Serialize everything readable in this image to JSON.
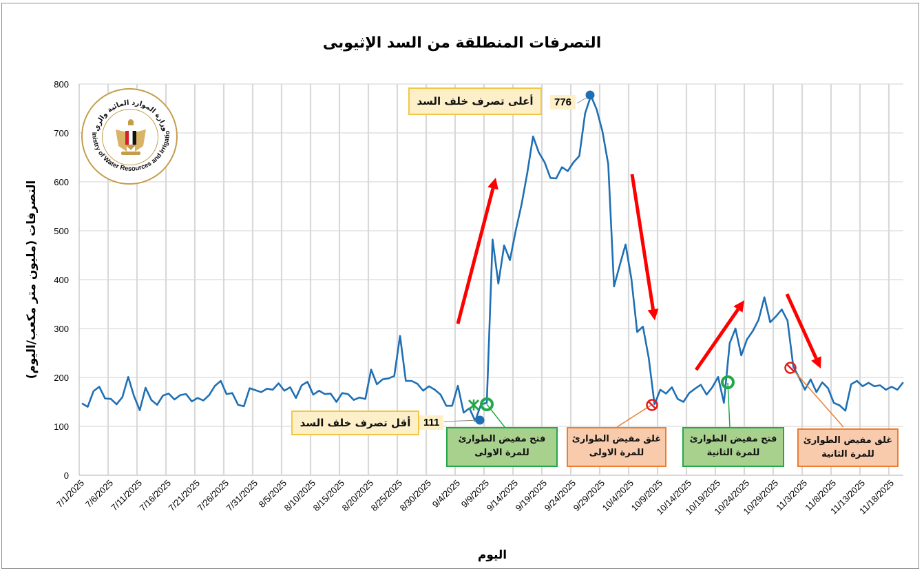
{
  "chart_data": {
    "type": "line",
    "title": "التصرفات المنطلقة من السد الإثيوبى",
    "xlabel": "اليوم",
    "ylabel": "التصرفات (مليون متر مكعب/اليوم)",
    "ylim": [
      0,
      800
    ],
    "yticks": [
      0,
      100,
      200,
      300,
      400,
      500,
      600,
      700,
      800
    ],
    "grid": true,
    "legend": null,
    "x_start": "7/1/2025",
    "x_end": "11/20/2025",
    "xtick_labels": [
      "7/1/2025",
      "7/6/2025",
      "7/11/2025",
      "7/16/2025",
      "7/21/2025",
      "7/26/2025",
      "7/31/2025",
      "8/5/2025",
      "8/10/2025",
      "8/15/2025",
      "8/20/2025",
      "8/25/2025",
      "8/30/2025",
      "9/4/2025",
      "9/9/2025",
      "9/14/2025",
      "9/19/2025",
      "9/24/2025",
      "9/29/2025",
      "10/4/2025",
      "10/9/2025",
      "10/14/2025",
      "10/19/2025",
      "10/24/2025",
      "10/29/2025",
      "11/3/2025",
      "11/8/2025",
      "11/13/2025",
      "11/18/2025"
    ],
    "series": [
      {
        "name": "التصرفات",
        "color": "#1f6fb4",
        "values": [
          147,
          140,
          172,
          181,
          157,
          156,
          145,
          160,
          201,
          162,
          133,
          179,
          154,
          144,
          163,
          167,
          155,
          164,
          166,
          151,
          158,
          153,
          164,
          183,
          193,
          166,
          168,
          144,
          141,
          178,
          174,
          170,
          177,
          175,
          188,
          173,
          180,
          158,
          184,
          191,
          165,
          173,
          166,
          167,
          150,
          168,
          166,
          154,
          159,
          156,
          216,
          186,
          196,
          198,
          203,
          285,
          193,
          193,
          187,
          173,
          182,
          175,
          165,
          142,
          142,
          183,
          128,
          137,
          111,
          145,
          148,
          482,
          392,
          470,
          440,
          500,
          553,
          618,
          693,
          660,
          640,
          608,
          607,
          630,
          622,
          640,
          653,
          740,
          776,
          748,
          703,
          636,
          386,
          430,
          472,
          402,
          293,
          304,
          240,
          145,
          175,
          167,
          180,
          156,
          150,
          168,
          177,
          185,
          165,
          180,
          201,
          148,
          270,
          300,
          245,
          278,
          295,
          318,
          364,
          313,
          325,
          339,
          316,
          222,
          200,
          175,
          196,
          170,
          190,
          178,
          148,
          143,
          132,
          186,
          193,
          182,
          189,
          182,
          184,
          175,
          181,
          175,
          190
        ]
      }
    ],
    "annotations": [
      {
        "type": "max",
        "date": "9/27/2025",
        "value": 776,
        "label": "أعلى تصرف خلف السد"
      },
      {
        "type": "min",
        "date": "9/7/2025",
        "value": 111,
        "label": "أقل تصرف خلف السد"
      },
      {
        "type": "event",
        "date": "9/9/2025",
        "label_line1": "فتح مفيض الطوارئ",
        "label_line2": "للمرة الاولى",
        "color": "green"
      },
      {
        "type": "event",
        "date": "10/9/2025",
        "label_line1": "غلق مفيض الطوارئ",
        "label_line2": "للمرة الاولى",
        "color": "orange"
      },
      {
        "type": "event",
        "date": "10/21/2025",
        "label_line1": "فتح مفيض الطوارئ",
        "label_line2": "للمرة الثانية",
        "color": "green"
      },
      {
        "type": "event",
        "date": "11/1/2025",
        "label_line1": "غلق مفيض الطوارئ",
        "label_line2": "للمرة الثانية",
        "color": "orange"
      },
      {
        "type": "trend-arrow",
        "direction": "up",
        "color": "#ff0000"
      },
      {
        "type": "trend-arrow",
        "direction": "down",
        "color": "#ff0000"
      },
      {
        "type": "trend-arrow",
        "direction": "up",
        "color": "#ff0000"
      },
      {
        "type": "trend-arrow",
        "direction": "down",
        "color": "#ff0000"
      }
    ]
  },
  "logo": {
    "arabic_text": "وزارة الموارد المائية والري",
    "english_text": "Ministry of Water Resources and Irrigation"
  },
  "callouts": {
    "max_label": "أعلى تصرف خلف السد",
    "max_value": "776",
    "min_label": "أقل تصرف خلف السد",
    "min_value": "111",
    "open1_line1": "فتح مفيض الطوارئ",
    "open1_line2": "للمرة الاولى",
    "close1_line1": "غلق مفيض الطوارئ",
    "close1_line2": "للمرة الاولى",
    "open2_line1": "فتح مفيض الطوارئ",
    "open2_line2": "للمرة الثانية",
    "close2_line1": "غلق مفيض الطوارئ",
    "close2_line2": "للمرة الثانية"
  },
  "colors": {
    "line": "#1f6fb4",
    "grid": "#d9d9d9",
    "arrow": "#ff0000",
    "open_marker": "#22a84a",
    "close_marker": "#e31b1b",
    "green_box": "#a9d18e",
    "orange_box": "#f8cbad",
    "yellow_box": "#fdf0c8"
  }
}
